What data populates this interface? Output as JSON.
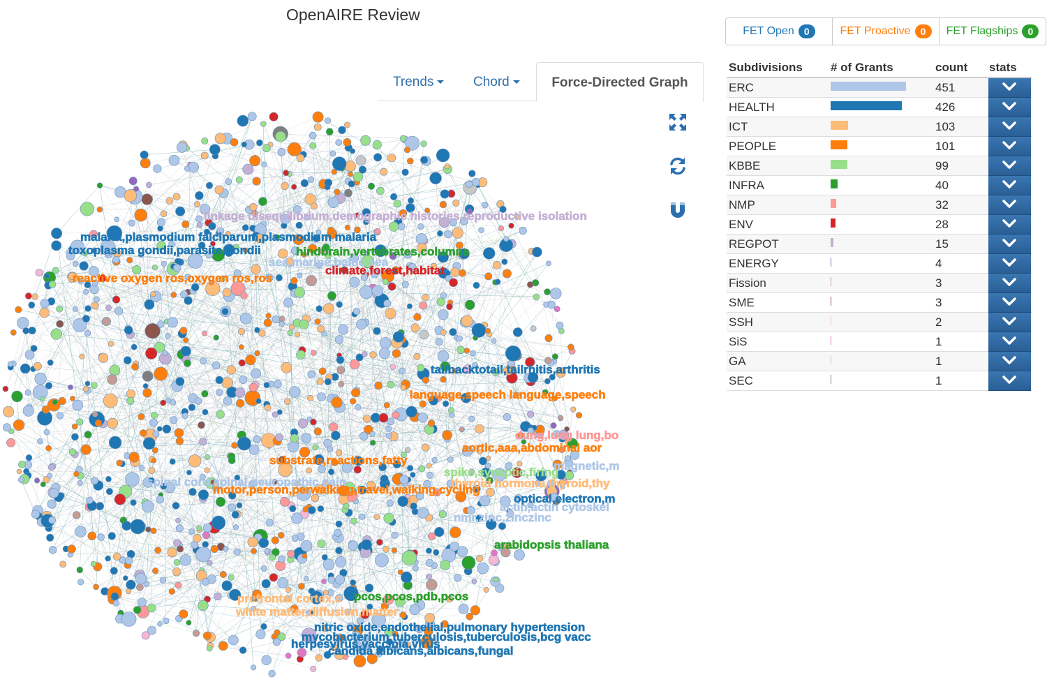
{
  "page": {
    "title": "OpenAIRE Review"
  },
  "tabs": [
    {
      "label": "Trends"
    },
    {
      "label": "Chord"
    },
    {
      "label": "Force-Directed Graph"
    }
  ],
  "toolbar": {
    "fullscreen_icon": "expand-icon",
    "refresh_icon": "refresh-icon",
    "magnet_icon": "magnet-icon"
  },
  "fet_filters": [
    {
      "label": "FET Open",
      "count": "0",
      "color": "#1f77b4"
    },
    {
      "label": "FET Proactive",
      "count": "0",
      "color": "#ff7f0e"
    },
    {
      "label": "FET Flagships",
      "count": "0",
      "color": "#2ca02c"
    }
  ],
  "table": {
    "headers": {
      "subdivisions": "Subdivisions",
      "grants": "# of Grants",
      "count": "count",
      "stats": "stats"
    },
    "rows": [
      {
        "name": "ERC",
        "count": "451",
        "color": "#aec7e8"
      },
      {
        "name": "HEALTH",
        "count": "426",
        "color": "#1f77b4"
      },
      {
        "name": "ICT",
        "count": "103",
        "color": "#ffbb78"
      },
      {
        "name": "PEOPLE",
        "count": "101",
        "color": "#ff7f0e"
      },
      {
        "name": "KBBE",
        "count": "99",
        "color": "#98df8a"
      },
      {
        "name": "INFRA",
        "count": "40",
        "color": "#2ca02c"
      },
      {
        "name": "NMP",
        "count": "32",
        "color": "#ff9896"
      },
      {
        "name": "ENV",
        "count": "28",
        "color": "#d62728"
      },
      {
        "name": "REGPOT",
        "count": "15",
        "color": "#c5b0d5"
      },
      {
        "name": "ENERGY",
        "count": "4",
        "color": "#9467bd"
      },
      {
        "name": "Fission",
        "count": "3",
        "color": "#c49c94"
      },
      {
        "name": "SME",
        "count": "3",
        "color": "#8c564b"
      },
      {
        "name": "SSH",
        "count": "2",
        "color": "#f7b6d2"
      },
      {
        "name": "SiS",
        "count": "1",
        "color": "#e377c2"
      },
      {
        "name": "GA",
        "count": "1",
        "color": "#c7c7c7"
      },
      {
        "name": "SEC",
        "count": "1",
        "color": "#7f7f7f"
      }
    ]
  },
  "graph": {
    "labels": [
      {
        "text": "linkage disequilibrium,demographic histories,reproductive isolation",
        "color": "#c5b0d5"
      },
      {
        "text": "malaria,plasmodium falciparum,plasmodium malaria",
        "color": "#1f77b4"
      },
      {
        "text": "toxoplasma gondii,parasite,gondii",
        "color": "#1f77b4"
      },
      {
        "text": "hindbrain,vertebrates,columns",
        "color": "#2ca02c"
      },
      {
        "text": "sea,marine,baltic sea",
        "color": "#aec7e8"
      },
      {
        "text": "climate,forest,habitat",
        "color": "#d62728"
      },
      {
        "text": "reactive oxygen ros,oxygen ros,ros",
        "color": "#ff7f0e"
      },
      {
        "text": "tailbacktotail,tailrhitis,arthritis",
        "color": "#1f77b4"
      },
      {
        "text": "language,speech language,speech",
        "color": "#ff7f0e"
      },
      {
        "text": "dung,lung lung,bo",
        "color": "#ff9896"
      },
      {
        "text": "aortic,aaa,abdominal aor",
        "color": "#ff7f0e"
      },
      {
        "text": "substrate,reactions,fatty",
        "color": "#ff7f0e"
      },
      {
        "text": "magnetic,m",
        "color": "#aec7e8"
      },
      {
        "text": "spike,synaptic,firing",
        "color": "#98df8a"
      },
      {
        "text": "spinal cord,spinal,neuropathic pain",
        "color": "#aec7e8"
      },
      {
        "text": "thyroid hormone,thyroid,thy",
        "color": "#ffbb78"
      },
      {
        "text": "motor,person,perwalking,travel,walking,cycling",
        "color": "#ff7f0e"
      },
      {
        "text": "optical,electron,m",
        "color": "#1f77b4"
      },
      {
        "text": "actin,actin cytoskel",
        "color": "#aec7e8"
      },
      {
        "text": "nmr,zinc,zinczinc",
        "color": "#aec7e8"
      },
      {
        "text": "arabidopsis thaliana",
        "color": "#2ca02c"
      },
      {
        "text": "prefrontal cortex,c",
        "color": "#ffbb78"
      },
      {
        "text": "pcos,pcos,pdb,pcos",
        "color": "#2ca02c"
      },
      {
        "text": "white matter,diffusion,matter",
        "color": "#ffbb78"
      },
      {
        "text": "nitric oxide,endothelial,pulmonary hypertension",
        "color": "#1f77b4"
      },
      {
        "text": "mycobacterium tuberculosis,tuberculosis,bcg vacc",
        "color": "#1f77b4"
      },
      {
        "text": "herpesvirus,vaccinia,virus",
        "color": "#1f77b4"
      },
      {
        "text": "candida albicans,albicans,fungal",
        "color": "#1f77b4"
      }
    ]
  }
}
